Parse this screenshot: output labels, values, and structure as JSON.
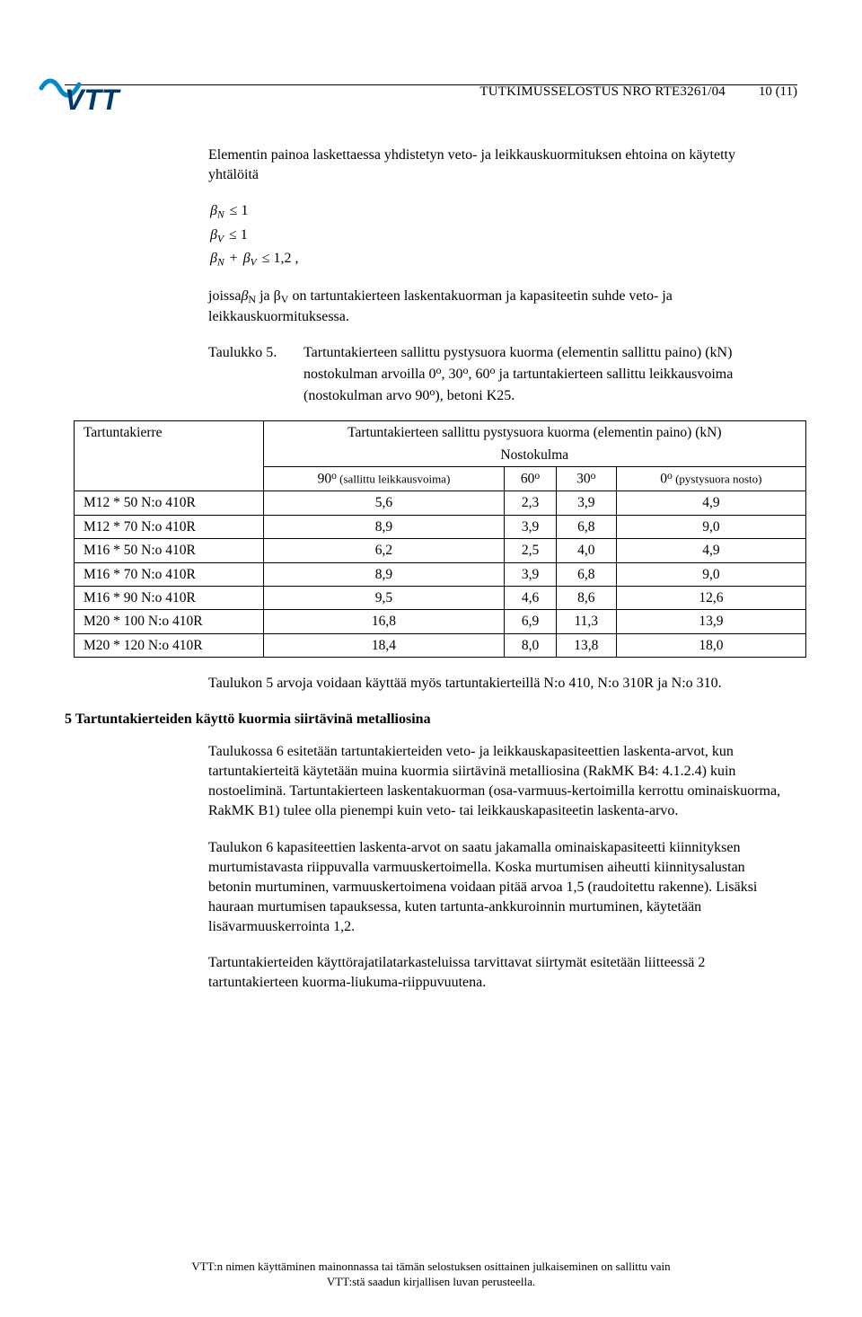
{
  "header": {
    "title": "TUTKIMUSSELOSTUS NRO RTE3261/04",
    "page_num": "10 (11)"
  },
  "logo": {
    "text": "VTT",
    "curve_color": "#0089cf",
    "text_color": "#003a70"
  },
  "p1": "Elementin painoa laskettaessa yhdistetyn veto- ja leikkauskuormituksen ehtoina on käytetty yhtälöitä",
  "eq": {
    "l1a": "β",
    "l1b": "N",
    "l1c": " ≤ 1",
    "l2a": "β",
    "l2b": "V",
    "l2c": " ≤ 1",
    "l3a": "β",
    "l3b": "N",
    "l3c": " + ",
    "l3d": "β",
    "l3e": "V",
    "l3f": " ≤ 1,2 ,"
  },
  "p2a": "joissa",
  "p2b": "β",
  "p2c": "N",
  "p2d": " ja β",
  "p2e": "V",
  "p2f": " on tartuntakierteen laskentakuorman ja kapasiteetin suhde veto- ja leikkauskuormituksessa.",
  "taulukko": {
    "label": "Taulukko 5.",
    "desc_a": "Tartuntakierteen sallittu pystysuora kuorma (elementin sallittu paino) (kN) nostokulman arvoilla 0",
    "deg": "o",
    "desc_b": ", 30",
    "desc_c": ", 60",
    "desc_d": " ja tartuntakierteen sallittu leikkausvoima (nostokulman arvo 90",
    "desc_e": "), betoni K25."
  },
  "table5": {
    "col0": "Tartuntakierre",
    "merged_head": "Tartuntakierteen sallittu pystysuora kuorma (elementin paino) (kN)",
    "subhead": "Nostokulma",
    "c1a": "90",
    "c1b": " (sallittu leikkausvoima)",
    "c2a": "60",
    "c3a": "30",
    "c4a": "0",
    "c4b": " (pystysuora nosto)",
    "rows": [
      {
        "n": "M12 * 50 N:o 410R",
        "a": "5,6",
        "b": "2,3",
        "c": "3,9",
        "d": "4,9"
      },
      {
        "n": "M12 * 70 N:o 410R",
        "a": "8,9",
        "b": "3,9",
        "c": "6,8",
        "d": "9,0"
      },
      {
        "n": "M16 * 50 N:o 410R",
        "a": "6,2",
        "b": "2,5",
        "c": "4,0",
        "d": "4,9"
      },
      {
        "n": "M16 * 70 N:o 410R",
        "a": "8,9",
        "b": "3,9",
        "c": "6,8",
        "d": "9,0"
      },
      {
        "n": "M16 * 90 N:o 410R",
        "a": "9,5",
        "b": "4,6",
        "c": "8,6",
        "d": "12,6"
      },
      {
        "n": "M20 * 100 N:o 410R",
        "a": "16,8",
        "b": "6,9",
        "c": "11,3",
        "d": "13,9"
      },
      {
        "n": "M20 * 120 N:o 410R",
        "a": "18,4",
        "b": "8,0",
        "c": "13,8",
        "d": "18,0"
      }
    ]
  },
  "p3": "Taulukon 5 arvoja voidaan käyttää myös tartuntakierteillä N:o 410, N:o 310R ja N:o 310.",
  "h5": "5 Tartuntakierteiden käyttö kuormia siirtävinä metalliosina",
  "p4": "Taulukossa 6 esitetään tartuntakierteiden veto- ja leikkauskapasiteettien laskenta-arvot, kun tartuntakierteitä käytetään muina kuormia siirtävinä metalliosina (RakMK B4: 4.1.2.4) kuin nostoeliminä. Tartuntakierteen laskentakuorman (osa-varmuus-kertoimilla kerrottu ominaiskuorma, RakMK B1) tulee olla pienempi kuin veto- tai leikkauskapasiteetin laskenta-arvo.",
  "p5": "Taulukon 6 kapasiteettien laskenta-arvot on saatu jakamalla ominaiskapasiteetti kiinnityksen murtumistavasta riippuvalla varmuuskertoimella. Koska murtumisen aiheutti kiinnitysalustan betonin murtuminen, varmuuskertoimena voidaan pitää arvoa 1,5 (raudoitettu rakenne). Lisäksi hauraan murtumisen tapauksessa, kuten tartunta-ankkuroinnin murtuminen, käytetään lisävarmuuskerrointa 1,2.",
  "p6": "Tartuntakierteiden käyttörajatilatarkasteluissa tarvittavat siirtymät esitetään liitteessä 2 tartuntakierteen kuorma-liukuma-riippuvuutena.",
  "footer": {
    "l1": "VTT:n nimen käyttäminen mainonnassa tai tämän selostuksen osittainen julkaiseminen on sallittu vain",
    "l2": "VTT:stä saadun kirjallisen luvan perusteella."
  }
}
